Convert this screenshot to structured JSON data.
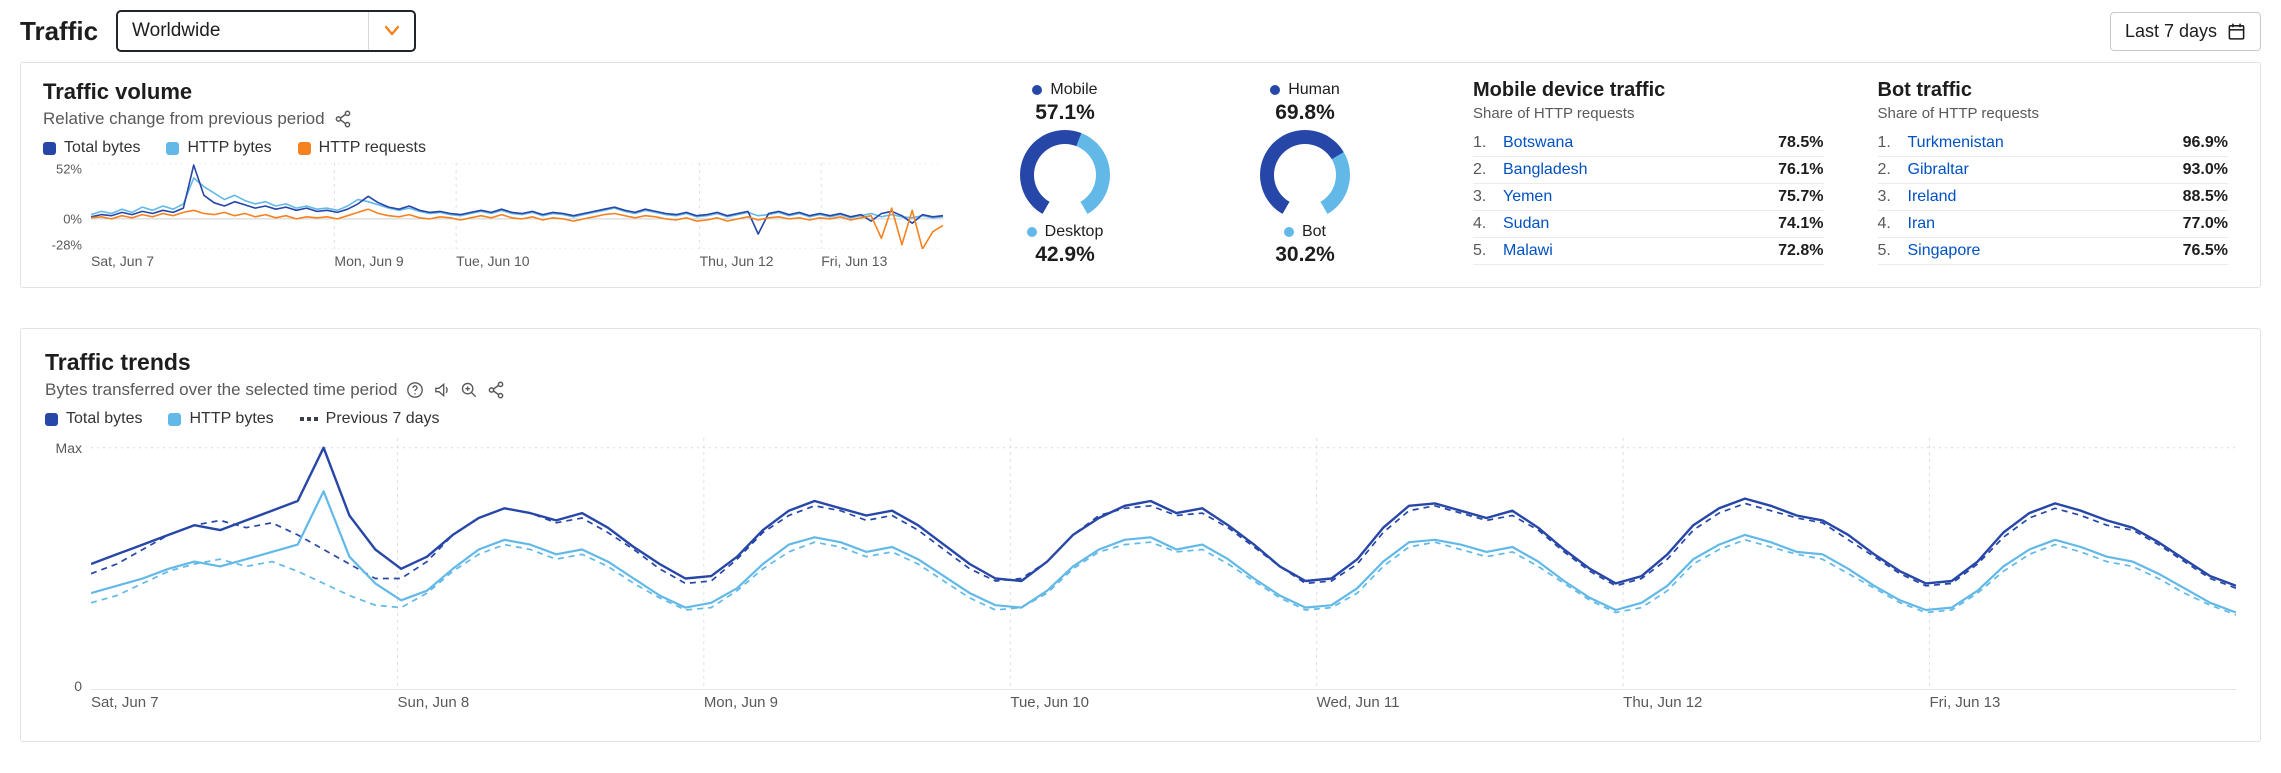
{
  "colors": {
    "total": "#2747a8",
    "http": "#62b9e8",
    "requests": "#f6821f",
    "prev": "#3b4048",
    "link": "#0051c3",
    "accent_orange": "#f6821f"
  },
  "header": {
    "title": "Traffic",
    "location": "Worldwide",
    "range_label": "Last 7 days"
  },
  "icons": {
    "chevron": "chevron-down",
    "calendar": "calendar",
    "share": "share-nodes",
    "help": "question-circle",
    "announce": "speaker",
    "zoom": "magnifier-plus"
  },
  "traffic_volume": {
    "title": "Traffic volume",
    "subtitle": "Relative change from previous period"
  },
  "volume_legend": [
    {
      "label": "Total bytes",
      "color": "#2747a8"
    },
    {
      "label": "HTTP bytes",
      "color": "#62b9e8"
    },
    {
      "label": "HTTP requests",
      "color": "#f6821f"
    }
  ],
  "gauges": [
    {
      "top_label": "Mobile",
      "top_value": "57.1%",
      "top_pct": 57.1,
      "bottom_label": "Desktop",
      "bottom_value": "42.9%"
    },
    {
      "top_label": "Human",
      "top_value": "69.8%",
      "top_pct": 69.8,
      "bottom_label": "Bot",
      "bottom_value": "30.2%"
    }
  ],
  "tables": [
    {
      "title": "Mobile device traffic",
      "subtitle": "Share of HTTP requests",
      "rows": [
        {
          "rank": "1.",
          "name": "Botswana",
          "value": "78.5%"
        },
        {
          "rank": "2.",
          "name": "Bangladesh",
          "value": "76.1%"
        },
        {
          "rank": "3.",
          "name": "Yemen",
          "value": "75.7%"
        },
        {
          "rank": "4.",
          "name": "Sudan",
          "value": "74.1%"
        },
        {
          "rank": "5.",
          "name": "Malawi",
          "value": "72.8%"
        }
      ]
    },
    {
      "title": "Bot traffic",
      "subtitle": "Share of HTTP requests",
      "rows": [
        {
          "rank": "1.",
          "name": "Turkmenistan",
          "value": "96.9%"
        },
        {
          "rank": "2.",
          "name": "Gibraltar",
          "value": "93.0%"
        },
        {
          "rank": "3.",
          "name": "Ireland",
          "value": "88.5%"
        },
        {
          "rank": "4.",
          "name": "Iran",
          "value": "77.0%"
        },
        {
          "rank": "5.",
          "name": "Singapore",
          "value": "76.5%"
        }
      ]
    }
  ],
  "trends": {
    "title": "Traffic trends",
    "subtitle": "Bytes transferred over the selected time period",
    "legend": [
      {
        "label": "Total bytes",
        "color": "#2747a8"
      },
      {
        "label": "HTTP bytes",
        "color": "#62b9e8"
      },
      {
        "label": "Previous 7 days",
        "color": "#3b4048",
        "dash": true
      }
    ]
  },
  "chart_data": [
    {
      "name": "traffic-volume-chart",
      "type": "line",
      "title": "Traffic volume",
      "ylabel": "Relative change from previous period (%)",
      "ylim": [
        -28,
        52
      ],
      "grid": true,
      "legend_position": "top",
      "yticks": [
        {
          "v": 52,
          "label": "52%"
        },
        {
          "v": 0,
          "label": "0%"
        },
        {
          "v": -28,
          "label": "-28%"
        }
      ],
      "xticks": [
        {
          "pos": 0,
          "label": "Sat, Jun 7"
        },
        {
          "pos": 0.2857,
          "label": "Mon, Jun 9"
        },
        {
          "pos": 0.4286,
          "label": "Tue, Jun 10"
        },
        {
          "pos": 0.7143,
          "label": "Thu, Jun 12"
        },
        {
          "pos": 0.8571,
          "label": "Fri, Jun 13"
        }
      ],
      "grid_x": [
        0.2857,
        0.4286,
        0.7143,
        0.8571
      ],
      "hlines": [
        {
          "v": 52,
          "color": "#e6e6e6",
          "dash": "2 4"
        },
        {
          "v": 0,
          "color": "#cfcfcf"
        },
        {
          "v": -28,
          "color": "#e6e6e6",
          "dash": "2 4"
        }
      ],
      "series": [
        {
          "key": "http-bytes",
          "name": "HTTP bytes",
          "color": "#62b9e8",
          "width": 1.6,
          "values": [
            4,
            7,
            5,
            9,
            6,
            11,
            8,
            12,
            9,
            14,
            38,
            30,
            24,
            18,
            22,
            17,
            14,
            16,
            12,
            14,
            10,
            12,
            9,
            10,
            8,
            12,
            18,
            16,
            13,
            10,
            8,
            10,
            7,
            5,
            6,
            4,
            3,
            5,
            7,
            5,
            8,
            5,
            4,
            6,
            3,
            5,
            4,
            2,
            4,
            6,
            8,
            10,
            7,
            5,
            8,
            6,
            4,
            3,
            5,
            2,
            3,
            5,
            2,
            4,
            6,
            3,
            4,
            6,
            3,
            5,
            2,
            4,
            2,
            4,
            1,
            3,
            5,
            2,
            4,
            2,
            1,
            3,
            1,
            2
          ]
        },
        {
          "key": "total-bytes",
          "name": "Total bytes",
          "color": "#2747a8",
          "width": 1.6,
          "values": [
            2,
            4,
            3,
            6,
            4,
            7,
            5,
            8,
            6,
            10,
            50,
            22,
            15,
            12,
            16,
            13,
            10,
            12,
            9,
            11,
            8,
            10,
            7,
            8,
            6,
            9,
            14,
            21,
            15,
            11,
            9,
            12,
            8,
            6,
            7,
            5,
            4,
            6,
            8,
            6,
            9,
            6,
            5,
            7,
            4,
            6,
            5,
            3,
            5,
            7,
            9,
            11,
            8,
            6,
            9,
            7,
            5,
            4,
            6,
            3,
            4,
            6,
            3,
            5,
            7,
            -14,
            5,
            7,
            4,
            6,
            3,
            5,
            3,
            5,
            2,
            4,
            -2,
            5,
            7,
            3,
            -4,
            4,
            2,
            3
          ]
        },
        {
          "key": "http-requests",
          "name": "HTTP requests",
          "color": "#f6821f",
          "width": 1.6,
          "values": [
            1,
            2,
            0,
            3,
            1,
            4,
            2,
            5,
            3,
            6,
            8,
            5,
            4,
            6,
            3,
            5,
            2,
            4,
            1,
            3,
            0,
            2,
            1,
            2,
            0,
            3,
            6,
            9,
            5,
            3,
            2,
            4,
            1,
            0,
            2,
            1,
            -1,
            1,
            3,
            1,
            4,
            1,
            0,
            2,
            -1,
            1,
            0,
            -2,
            0,
            2,
            4,
            5,
            3,
            1,
            3,
            2,
            0,
            -1,
            1,
            -2,
            -1,
            1,
            -2,
            0,
            2,
            -1,
            1,
            2,
            0,
            1,
            -1,
            1,
            0,
            2,
            -1,
            1,
            3,
            -18,
            10,
            -24,
            8,
            -28,
            -12,
            -6
          ]
        }
      ]
    },
    {
      "name": "traffic-trends-chart",
      "type": "line",
      "title": "Traffic trends",
      "ylabel": "Bytes transferred (normalized, 0 to Max)",
      "ylim": [
        0,
        1.04
      ],
      "grid": true,
      "legend_position": "top",
      "yticks": [
        {
          "v": 1,
          "label": "Max"
        },
        {
          "v": 0,
          "label": "0"
        }
      ],
      "xticks": [
        {
          "pos": 0,
          "label": "Sat, Jun 7"
        },
        {
          "pos": 0.1429,
          "label": "Sun, Jun 8"
        },
        {
          "pos": 0.2857,
          "label": "Mon, Jun 9"
        },
        {
          "pos": 0.4286,
          "label": "Tue, Jun 10"
        },
        {
          "pos": 0.5714,
          "label": "Wed, Jun 11"
        },
        {
          "pos": 0.7143,
          "label": "Thu, Jun 12"
        },
        {
          "pos": 0.8571,
          "label": "Fri, Jun 13"
        }
      ],
      "grid_x": [
        0.1429,
        0.2857,
        0.4286,
        0.5714,
        0.7143,
        0.8571
      ],
      "hlines": [
        {
          "v": 1,
          "color": "#d8d8d8",
          "dash": "2 4"
        },
        {
          "v": 0,
          "color": "#c9c9c9"
        }
      ],
      "series": [
        {
          "key": "prev-http-bytes",
          "name": "HTTP bytes (previous 7 days)",
          "color": "#62b9e8",
          "width": 1.7,
          "dash": "6 5",
          "values": [
            0.36,
            0.39,
            0.44,
            0.49,
            0.52,
            0.54,
            0.51,
            0.53,
            0.49,
            0.44,
            0.39,
            0.35,
            0.34,
            0.4,
            0.49,
            0.56,
            0.6,
            0.58,
            0.54,
            0.56,
            0.51,
            0.44,
            0.38,
            0.33,
            0.34,
            0.41,
            0.5,
            0.57,
            0.61,
            0.59,
            0.55,
            0.57,
            0.52,
            0.45,
            0.38,
            0.33,
            0.34,
            0.4,
            0.5,
            0.57,
            0.6,
            0.61,
            0.57,
            0.58,
            0.52,
            0.45,
            0.38,
            0.33,
            0.34,
            0.4,
            0.51,
            0.59,
            0.61,
            0.58,
            0.55,
            0.57,
            0.51,
            0.44,
            0.37,
            0.32,
            0.34,
            0.41,
            0.52,
            0.58,
            0.62,
            0.59,
            0.56,
            0.54,
            0.48,
            0.42,
            0.36,
            0.32,
            0.33,
            0.4,
            0.49,
            0.56,
            0.6,
            0.57,
            0.53,
            0.51,
            0.46,
            0.4,
            0.35,
            0.31
          ]
        },
        {
          "key": "prev-total-bytes",
          "name": "Total bytes (previous 7 days)",
          "color": "#2747a8",
          "width": 1.7,
          "dash": "6 5",
          "values": [
            0.48,
            0.52,
            0.58,
            0.64,
            0.68,
            0.7,
            0.67,
            0.69,
            0.64,
            0.58,
            0.52,
            0.46,
            0.46,
            0.53,
            0.64,
            0.71,
            0.75,
            0.73,
            0.69,
            0.71,
            0.65,
            0.58,
            0.5,
            0.44,
            0.45,
            0.54,
            0.65,
            0.72,
            0.76,
            0.74,
            0.7,
            0.72,
            0.66,
            0.58,
            0.5,
            0.45,
            0.46,
            0.53,
            0.64,
            0.72,
            0.75,
            0.76,
            0.72,
            0.73,
            0.67,
            0.59,
            0.51,
            0.44,
            0.45,
            0.52,
            0.65,
            0.74,
            0.76,
            0.73,
            0.7,
            0.72,
            0.66,
            0.57,
            0.49,
            0.43,
            0.46,
            0.54,
            0.66,
            0.73,
            0.77,
            0.74,
            0.71,
            0.69,
            0.62,
            0.55,
            0.48,
            0.43,
            0.44,
            0.52,
            0.63,
            0.71,
            0.75,
            0.72,
            0.68,
            0.66,
            0.6,
            0.53,
            0.46,
            0.42
          ]
        },
        {
          "key": "http-bytes",
          "name": "HTTP bytes",
          "color": "#62b9e8",
          "width": 2.2,
          "values": [
            0.4,
            0.43,
            0.46,
            0.5,
            0.53,
            0.51,
            0.54,
            0.57,
            0.6,
            0.82,
            0.55,
            0.44,
            0.37,
            0.41,
            0.5,
            0.58,
            0.62,
            0.6,
            0.56,
            0.58,
            0.53,
            0.46,
            0.39,
            0.34,
            0.36,
            0.42,
            0.52,
            0.6,
            0.63,
            0.61,
            0.57,
            0.59,
            0.54,
            0.47,
            0.4,
            0.35,
            0.34,
            0.41,
            0.51,
            0.58,
            0.62,
            0.63,
            0.58,
            0.6,
            0.54,
            0.46,
            0.39,
            0.34,
            0.35,
            0.42,
            0.53,
            0.61,
            0.62,
            0.6,
            0.57,
            0.59,
            0.53,
            0.45,
            0.38,
            0.33,
            0.36,
            0.43,
            0.54,
            0.6,
            0.64,
            0.61,
            0.57,
            0.56,
            0.5,
            0.43,
            0.37,
            0.33,
            0.34,
            0.41,
            0.51,
            0.58,
            0.62,
            0.59,
            0.55,
            0.53,
            0.48,
            0.42,
            0.36,
            0.32
          ]
        },
        {
          "key": "total-bytes",
          "name": "Total bytes",
          "color": "#2747a8",
          "width": 2.4,
          "values": [
            0.52,
            0.56,
            0.6,
            0.64,
            0.68,
            0.66,
            0.7,
            0.74,
            0.78,
            1.0,
            0.72,
            0.58,
            0.5,
            0.55,
            0.64,
            0.71,
            0.75,
            0.73,
            0.7,
            0.73,
            0.67,
            0.59,
            0.52,
            0.46,
            0.47,
            0.55,
            0.66,
            0.74,
            0.78,
            0.75,
            0.72,
            0.74,
            0.68,
            0.6,
            0.52,
            0.46,
            0.45,
            0.53,
            0.64,
            0.71,
            0.76,
            0.78,
            0.73,
            0.75,
            0.68,
            0.6,
            0.51,
            0.45,
            0.46,
            0.54,
            0.67,
            0.76,
            0.77,
            0.74,
            0.71,
            0.74,
            0.67,
            0.58,
            0.5,
            0.44,
            0.47,
            0.56,
            0.68,
            0.75,
            0.79,
            0.76,
            0.72,
            0.7,
            0.64,
            0.56,
            0.49,
            0.44,
            0.45,
            0.53,
            0.65,
            0.73,
            0.77,
            0.74,
            0.7,
            0.67,
            0.61,
            0.54,
            0.47,
            0.43
          ]
        }
      ]
    }
  ]
}
